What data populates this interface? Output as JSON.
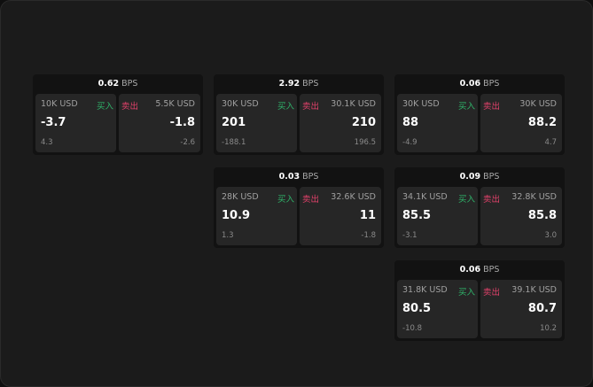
{
  "unit_label": "BPS",
  "buy_label": "买入",
  "sell_label": "卖出",
  "colors": {
    "buy": "#2fb36a",
    "sell": "#e0416a",
    "background": "#1b1b1b"
  },
  "cards": [
    {
      "spread": "0.62",
      "buy": {
        "amount": "10K USD",
        "price": "-3.7",
        "change": "4.3"
      },
      "sell": {
        "amount": "5.5K USD",
        "price": "-1.8",
        "change": "-2.6"
      }
    },
    {
      "spread": "2.92",
      "buy": {
        "amount": "30K USD",
        "price": "201",
        "change": "-188.1"
      },
      "sell": {
        "amount": "30.1K USD",
        "price": "210",
        "change": "196.5"
      }
    },
    {
      "spread": "0.06",
      "buy": {
        "amount": "30K USD",
        "price": "88",
        "change": "-4.9"
      },
      "sell": {
        "amount": "30K USD",
        "price": "88.2",
        "change": "4.7"
      }
    },
    {
      "spread": "0.03",
      "buy": {
        "amount": "28K USD",
        "price": "10.9",
        "change": "1.3"
      },
      "sell": {
        "amount": "32.6K USD",
        "price": "11",
        "change": "-1.8"
      }
    },
    {
      "spread": "0.09",
      "buy": {
        "amount": "34.1K USD",
        "price": "85.5",
        "change": "-3.1"
      },
      "sell": {
        "amount": "32.8K USD",
        "price": "85.8",
        "change": "3.0"
      }
    },
    {
      "spread": "0.06",
      "buy": {
        "amount": "31.8K USD",
        "price": "80.5",
        "change": "-10.8"
      },
      "sell": {
        "amount": "39.1K USD",
        "price": "80.7",
        "change": "10.2"
      }
    }
  ]
}
